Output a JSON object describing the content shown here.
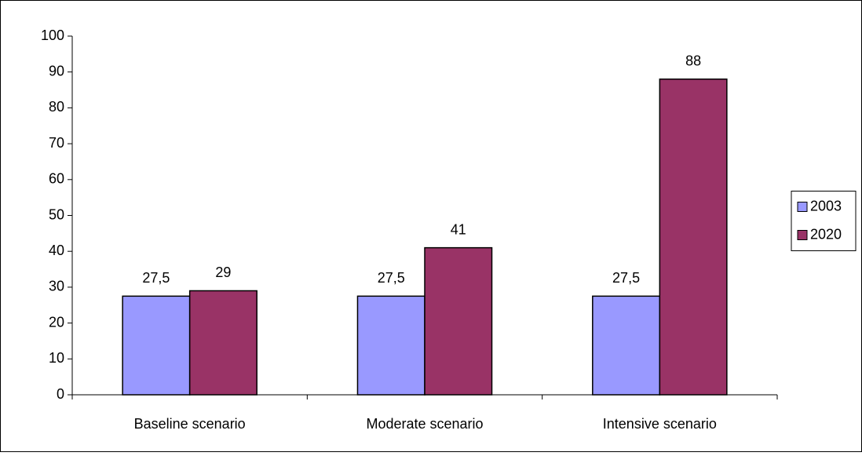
{
  "chart_data": {
    "type": "bar",
    "categories": [
      "Baseline scenario",
      "Moderate scenario",
      "Intensive scenario"
    ],
    "series": [
      {
        "name": "2003",
        "color": "#9999ff",
        "values": [
          27.5,
          27.5,
          27.5
        ],
        "value_labels": [
          "27,5",
          "27,5",
          "27,5"
        ]
      },
      {
        "name": "2020",
        "color": "#993366",
        "values": [
          29,
          41,
          88
        ]
      }
    ],
    "ylim": [
      0,
      100
    ],
    "yticks": [
      0,
      10,
      20,
      30,
      40,
      50,
      60,
      70,
      80,
      90,
      100
    ],
    "grid": false,
    "legend": "right"
  }
}
